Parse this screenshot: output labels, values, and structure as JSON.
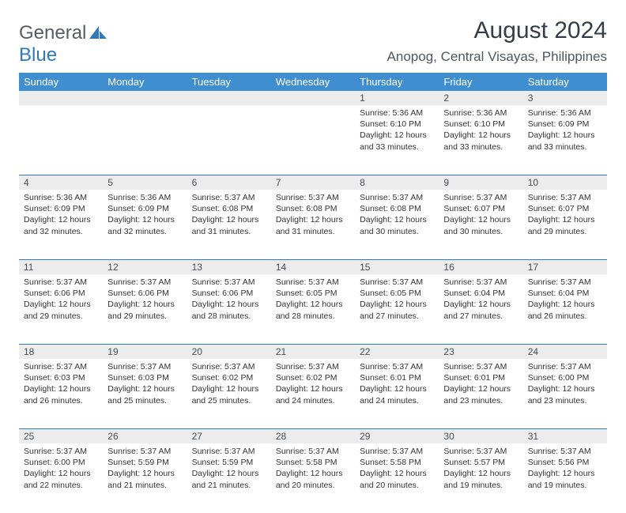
{
  "brand": {
    "word1": "General",
    "word2": "Blue"
  },
  "title": "August 2024",
  "location": "Anopog, Central Visayas, Philippines",
  "colors": {
    "header_bg": "#3f8fd0",
    "accent_line": "#2f79bf",
    "daynum_bg": "#ececec",
    "text_dark": "#333e48"
  },
  "day_headers": [
    "Sunday",
    "Monday",
    "Tuesday",
    "Wednesday",
    "Thursday",
    "Friday",
    "Saturday"
  ],
  "weeks": [
    [
      null,
      null,
      null,
      null,
      {
        "n": "1",
        "sr": "Sunrise: 5:36 AM",
        "ss": "Sunset: 6:10 PM",
        "d1": "Daylight: 12 hours",
        "d2": "and 33 minutes."
      },
      {
        "n": "2",
        "sr": "Sunrise: 5:36 AM",
        "ss": "Sunset: 6:10 PM",
        "d1": "Daylight: 12 hours",
        "d2": "and 33 minutes."
      },
      {
        "n": "3",
        "sr": "Sunrise: 5:36 AM",
        "ss": "Sunset: 6:09 PM",
        "d1": "Daylight: 12 hours",
        "d2": "and 33 minutes."
      }
    ],
    [
      {
        "n": "4",
        "sr": "Sunrise: 5:36 AM",
        "ss": "Sunset: 6:09 PM",
        "d1": "Daylight: 12 hours",
        "d2": "and 32 minutes."
      },
      {
        "n": "5",
        "sr": "Sunrise: 5:36 AM",
        "ss": "Sunset: 6:09 PM",
        "d1": "Daylight: 12 hours",
        "d2": "and 32 minutes."
      },
      {
        "n": "6",
        "sr": "Sunrise: 5:37 AM",
        "ss": "Sunset: 6:08 PM",
        "d1": "Daylight: 12 hours",
        "d2": "and 31 minutes."
      },
      {
        "n": "7",
        "sr": "Sunrise: 5:37 AM",
        "ss": "Sunset: 6:08 PM",
        "d1": "Daylight: 12 hours",
        "d2": "and 31 minutes."
      },
      {
        "n": "8",
        "sr": "Sunrise: 5:37 AM",
        "ss": "Sunset: 6:08 PM",
        "d1": "Daylight: 12 hours",
        "d2": "and 30 minutes."
      },
      {
        "n": "9",
        "sr": "Sunrise: 5:37 AM",
        "ss": "Sunset: 6:07 PM",
        "d1": "Daylight: 12 hours",
        "d2": "and 30 minutes."
      },
      {
        "n": "10",
        "sr": "Sunrise: 5:37 AM",
        "ss": "Sunset: 6:07 PM",
        "d1": "Daylight: 12 hours",
        "d2": "and 29 minutes."
      }
    ],
    [
      {
        "n": "11",
        "sr": "Sunrise: 5:37 AM",
        "ss": "Sunset: 6:06 PM",
        "d1": "Daylight: 12 hours",
        "d2": "and 29 minutes."
      },
      {
        "n": "12",
        "sr": "Sunrise: 5:37 AM",
        "ss": "Sunset: 6:06 PM",
        "d1": "Daylight: 12 hours",
        "d2": "and 29 minutes."
      },
      {
        "n": "13",
        "sr": "Sunrise: 5:37 AM",
        "ss": "Sunset: 6:06 PM",
        "d1": "Daylight: 12 hours",
        "d2": "and 28 minutes."
      },
      {
        "n": "14",
        "sr": "Sunrise: 5:37 AM",
        "ss": "Sunset: 6:05 PM",
        "d1": "Daylight: 12 hours",
        "d2": "and 28 minutes."
      },
      {
        "n": "15",
        "sr": "Sunrise: 5:37 AM",
        "ss": "Sunset: 6:05 PM",
        "d1": "Daylight: 12 hours",
        "d2": "and 27 minutes."
      },
      {
        "n": "16",
        "sr": "Sunrise: 5:37 AM",
        "ss": "Sunset: 6:04 PM",
        "d1": "Daylight: 12 hours",
        "d2": "and 27 minutes."
      },
      {
        "n": "17",
        "sr": "Sunrise: 5:37 AM",
        "ss": "Sunset: 6:04 PM",
        "d1": "Daylight: 12 hours",
        "d2": "and 26 minutes."
      }
    ],
    [
      {
        "n": "18",
        "sr": "Sunrise: 5:37 AM",
        "ss": "Sunset: 6:03 PM",
        "d1": "Daylight: 12 hours",
        "d2": "and 26 minutes."
      },
      {
        "n": "19",
        "sr": "Sunrise: 5:37 AM",
        "ss": "Sunset: 6:03 PM",
        "d1": "Daylight: 12 hours",
        "d2": "and 25 minutes."
      },
      {
        "n": "20",
        "sr": "Sunrise: 5:37 AM",
        "ss": "Sunset: 6:02 PM",
        "d1": "Daylight: 12 hours",
        "d2": "and 25 minutes."
      },
      {
        "n": "21",
        "sr": "Sunrise: 5:37 AM",
        "ss": "Sunset: 6:02 PM",
        "d1": "Daylight: 12 hours",
        "d2": "and 24 minutes."
      },
      {
        "n": "22",
        "sr": "Sunrise: 5:37 AM",
        "ss": "Sunset: 6:01 PM",
        "d1": "Daylight: 12 hours",
        "d2": "and 24 minutes."
      },
      {
        "n": "23",
        "sr": "Sunrise: 5:37 AM",
        "ss": "Sunset: 6:01 PM",
        "d1": "Daylight: 12 hours",
        "d2": "and 23 minutes."
      },
      {
        "n": "24",
        "sr": "Sunrise: 5:37 AM",
        "ss": "Sunset: 6:00 PM",
        "d1": "Daylight: 12 hours",
        "d2": "and 23 minutes."
      }
    ],
    [
      {
        "n": "25",
        "sr": "Sunrise: 5:37 AM",
        "ss": "Sunset: 6:00 PM",
        "d1": "Daylight: 12 hours",
        "d2": "and 22 minutes."
      },
      {
        "n": "26",
        "sr": "Sunrise: 5:37 AM",
        "ss": "Sunset: 5:59 PM",
        "d1": "Daylight: 12 hours",
        "d2": "and 21 minutes."
      },
      {
        "n": "27",
        "sr": "Sunrise: 5:37 AM",
        "ss": "Sunset: 5:59 PM",
        "d1": "Daylight: 12 hours",
        "d2": "and 21 minutes."
      },
      {
        "n": "28",
        "sr": "Sunrise: 5:37 AM",
        "ss": "Sunset: 5:58 PM",
        "d1": "Daylight: 12 hours",
        "d2": "and 20 minutes."
      },
      {
        "n": "29",
        "sr": "Sunrise: 5:37 AM",
        "ss": "Sunset: 5:58 PM",
        "d1": "Daylight: 12 hours",
        "d2": "and 20 minutes."
      },
      {
        "n": "30",
        "sr": "Sunrise: 5:37 AM",
        "ss": "Sunset: 5:57 PM",
        "d1": "Daylight: 12 hours",
        "d2": "and 19 minutes."
      },
      {
        "n": "31",
        "sr": "Sunrise: 5:37 AM",
        "ss": "Sunset: 5:56 PM",
        "d1": "Daylight: 12 hours",
        "d2": "and 19 minutes."
      }
    ]
  ]
}
